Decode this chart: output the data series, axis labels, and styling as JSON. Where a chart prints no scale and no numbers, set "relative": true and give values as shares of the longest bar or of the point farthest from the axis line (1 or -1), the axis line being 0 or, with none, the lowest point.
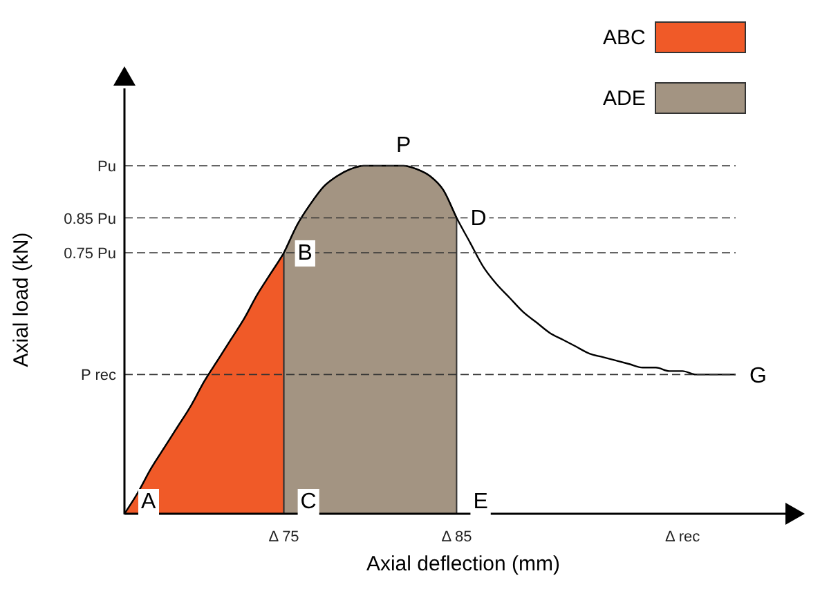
{
  "chart_data": {
    "type": "line",
    "relative": true,
    "xlabel": "Axial deflection (mm)",
    "ylabel": "Axial load (kN)",
    "categories": [
      null,
      null,
      null,
      null,
      null,
      null,
      null,
      null,
      null,
      null,
      null,
      null,
      "Δ 75",
      null,
      null,
      null,
      null,
      null,
      null,
      null,
      null,
      null,
      null,
      null,
      null,
      "Δ 85",
      null,
      null,
      null,
      null,
      null,
      null,
      null,
      null,
      null,
      null,
      null,
      null,
      null,
      null,
      null,
      null,
      "Δ rec",
      null,
      null,
      null,
      null
    ],
    "series": [
      {
        "name": "ABC",
        "type": "area",
        "color": "#f05a28",
        "values": [
          0,
          0.06,
          0.13,
          0.19,
          0.25,
          0.31,
          0.38,
          0.44,
          0.5,
          0.56,
          0.63,
          0.69,
          0.75,
          null,
          null,
          null,
          null,
          null,
          null,
          null,
          null,
          null,
          null,
          null,
          null,
          null,
          null,
          null,
          null,
          null,
          null,
          null,
          null,
          null,
          null,
          null,
          null,
          null,
          null,
          null,
          null,
          null,
          null,
          null,
          null,
          null,
          null
        ]
      },
      {
        "name": "ADE",
        "type": "area",
        "color": "#a39482",
        "values": [
          null,
          null,
          null,
          null,
          null,
          null,
          null,
          null,
          null,
          null,
          null,
          null,
          0.75,
          0.83,
          0.89,
          0.94,
          0.97,
          0.99,
          1,
          1,
          1,
          1,
          0.99,
          0.97,
          0.93,
          0.85,
          null,
          null,
          null,
          null,
          null,
          null,
          null,
          null,
          null,
          null,
          null,
          null,
          null,
          null,
          null,
          null,
          null,
          null,
          null,
          null,
          null
        ]
      },
      {
        "color": "#000000",
        "values": [
          0,
          0.06,
          0.13,
          0.19,
          0.25,
          0.31,
          0.38,
          0.44,
          0.5,
          0.56,
          0.63,
          0.69,
          0.75,
          0.83,
          0.89,
          0.94,
          0.97,
          0.99,
          1,
          1,
          1,
          1,
          0.99,
          0.97,
          0.93,
          0.85,
          0.78,
          0.71,
          0.66,
          0.62,
          0.58,
          0.55,
          0.52,
          0.5,
          0.48,
          0.46,
          0.45,
          0.44,
          0.43,
          0.42,
          0.42,
          0.41,
          0.41,
          0.4,
          0.4,
          0.4,
          0.4
        ]
      }
    ],
    "ref_lines": [
      {
        "axis": "y",
        "value": 1,
        "label": "Pu",
        "line_style": "dashed"
      },
      {
        "axis": "y",
        "value": 0.85,
        "label": "0.85 Pu",
        "line_style": "dashed"
      },
      {
        "axis": "y",
        "value": 0.75,
        "label": "0.75 Pu",
        "line_style": "dashed"
      },
      {
        "axis": "y",
        "value": 0.4,
        "label": "P rec",
        "line_style": "dashed"
      }
    ],
    "annotations": [
      {
        "text": "A",
        "y": 0
      },
      {
        "text": "B",
        "x": "Δ 75",
        "y": 0.75
      },
      {
        "text": "C",
        "x": "Δ 75",
        "y": 0
      },
      {
        "text": "P",
        "y": 1
      },
      {
        "text": "D",
        "x": "Δ 85",
        "y": 0.85
      },
      {
        "text": "E",
        "x": "Δ 85",
        "y": 0
      },
      "G"
    ],
    "grid": false,
    "legend": "top right"
  }
}
